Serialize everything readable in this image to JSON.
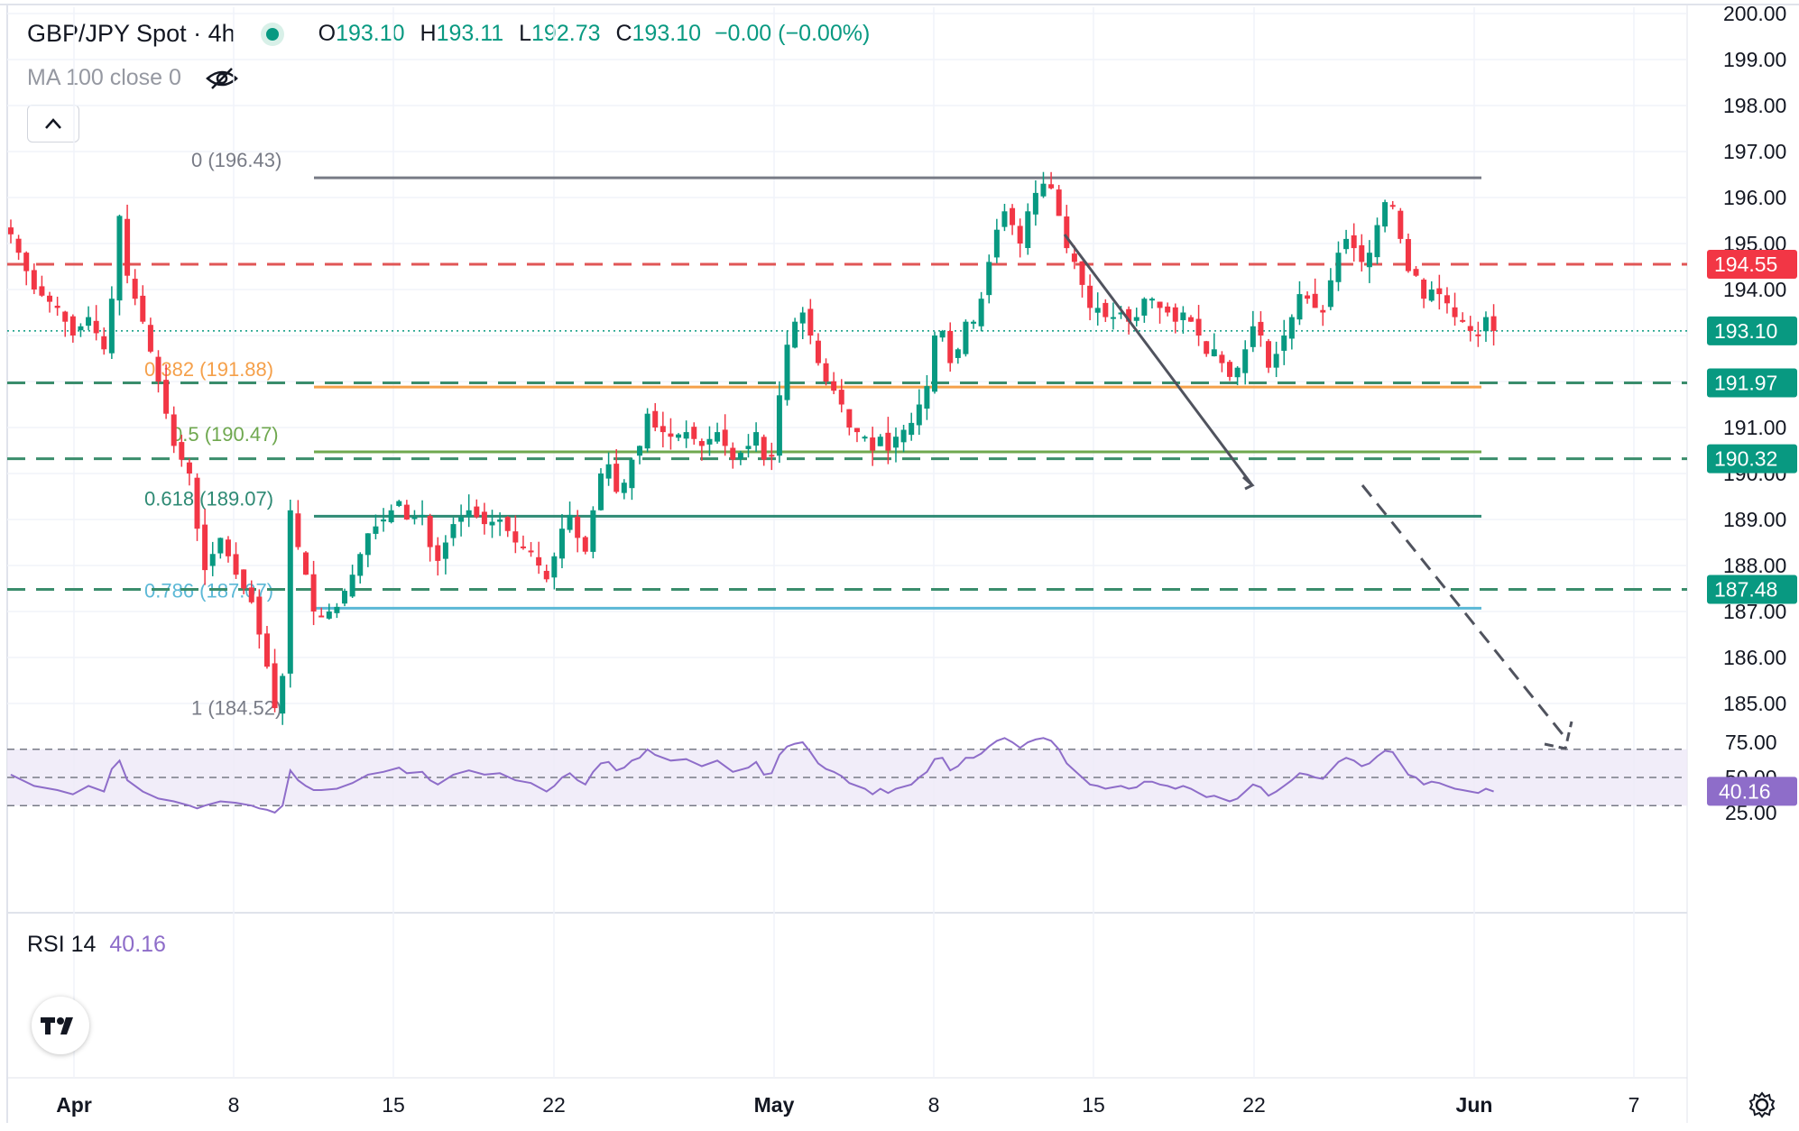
{
  "header": {
    "symbol": "GBP/JPY Spot · 4h",
    "o_label": "O",
    "o_value": "193.10",
    "h_label": "H",
    "h_value": "193.11",
    "l_label": "L",
    "l_value": "192.73",
    "c_label": "C",
    "c_value": "193.10",
    "change": "−0.00 (−0.00%)",
    "indicator": "MA 100 close 0"
  },
  "rsi_legend": {
    "name": "RSI 14",
    "value": "40.16"
  },
  "colors": {
    "up": "#089981",
    "down": "#f23645",
    "resistance": "#e05656",
    "support": "#3a8d6c",
    "fib_382": "#f5a04a",
    "fib_05": "#6fa84f",
    "fib_618": "#2e8a74",
    "fib_786": "#5bb8d6",
    "fib_0": "#787b86",
    "rsi": "#8e6dc9"
  },
  "chart_data": [
    {
      "type": "candlestick",
      "title": "GBP/JPY Spot · 4h",
      "y_ticks": [
        "200.00",
        "199.00",
        "198.00",
        "197.00",
        "196.00",
        "195.00",
        "194.00",
        "191.00",
        "190.00",
        "189.00",
        "188.00",
        "187.00",
        "186.00",
        "185.00"
      ],
      "x_ticks": [
        "Apr",
        "8",
        "15",
        "22",
        "May",
        "8",
        "15",
        "22",
        "Jun",
        "7"
      ],
      "ylim": [
        184.7,
        200.2
      ],
      "price_tags": [
        {
          "label": "194.55",
          "value": 194.55,
          "kind": "resistance"
        },
        {
          "label": "193.10",
          "value": 193.1,
          "kind": "last"
        },
        {
          "label": "191.97",
          "value": 191.97,
          "kind": "support"
        },
        {
          "label": "190.32",
          "value": 190.32,
          "kind": "support"
        },
        {
          "label": "187.48",
          "value": 187.48,
          "kind": "support"
        }
      ],
      "fib_levels": [
        {
          "label": "0 (196.43)",
          "value": 196.43,
          "key": "fib_0"
        },
        {
          "label": "0.382 (191.88)",
          "value": 191.88,
          "key": "fib_382"
        },
        {
          "label": "0.5 (190.47)",
          "value": 190.47,
          "key": "fib_05"
        },
        {
          "label": "0.618 (189.07)",
          "value": 189.07,
          "key": "fib_618"
        },
        {
          "label": "0.786 (187.07)",
          "value": 187.07,
          "key": "fib_786"
        },
        {
          "label": "1 (184.52)",
          "value": 184.52,
          "key": "fib_1"
        }
      ],
      "close_path": [
        [
          0,
          195.2
        ],
        [
          3,
          194.0
        ],
        [
          6,
          193.6
        ],
        [
          8,
          193.0
        ],
        [
          10,
          193.4
        ],
        [
          12,
          192.7
        ],
        [
          13,
          193.8
        ],
        [
          14,
          195.6
        ],
        [
          15,
          194.3
        ],
        [
          17,
          193.3
        ],
        [
          19,
          192.0
        ],
        [
          21,
          190.6
        ],
        [
          23,
          190.0
        ],
        [
          24,
          188.8
        ],
        [
          25,
          187.9
        ],
        [
          27,
          188.6
        ],
        [
          29,
          187.8
        ],
        [
          31,
          187.2
        ],
        [
          32,
          186.5
        ],
        [
          33,
          185.8
        ],
        [
          34,
          184.9
        ],
        [
          35,
          185.6
        ],
        [
          36,
          189.2
        ],
        [
          37,
          188.4
        ],
        [
          38,
          187.8
        ],
        [
          39,
          187.0
        ],
        [
          40,
          186.9
        ],
        [
          42,
          187.1
        ],
        [
          44,
          187.8
        ],
        [
          46,
          188.7
        ],
        [
          48,
          189.0
        ],
        [
          50,
          189.4
        ],
        [
          51,
          189.0
        ],
        [
          53,
          189.1
        ],
        [
          54,
          188.4
        ],
        [
          55,
          188.1
        ],
        [
          57,
          188.9
        ],
        [
          59,
          189.2
        ],
        [
          61,
          188.9
        ],
        [
          63,
          189.0
        ],
        [
          65,
          188.5
        ],
        [
          67,
          188.3
        ],
        [
          69,
          187.7
        ],
        [
          70,
          188.2
        ],
        [
          71,
          188.8
        ],
        [
          72,
          189.1
        ],
        [
          73,
          188.6
        ],
        [
          74,
          188.3
        ],
        [
          75,
          189.2
        ],
        [
          76,
          190.0
        ],
        [
          77,
          190.2
        ],
        [
          78,
          189.6
        ],
        [
          79,
          189.8
        ],
        [
          80,
          190.3
        ],
        [
          81,
          190.6
        ],
        [
          82,
          191.3
        ],
        [
          83,
          191.0
        ],
        [
          85,
          190.8
        ],
        [
          87,
          190.9
        ],
        [
          89,
          190.6
        ],
        [
          91,
          190.9
        ],
        [
          93,
          190.3
        ],
        [
          95,
          190.6
        ],
        [
          96,
          190.9
        ],
        [
          97,
          190.3
        ],
        [
          98,
          190.4
        ],
        [
          99,
          191.7
        ],
        [
          100,
          192.8
        ],
        [
          101,
          193.3
        ],
        [
          102,
          193.5
        ],
        [
          103,
          193.0
        ],
        [
          104,
          192.4
        ],
        [
          105,
          192.0
        ],
        [
          106,
          191.8
        ],
        [
          107,
          191.5
        ],
        [
          108,
          191.0
        ],
        [
          110,
          190.8
        ],
        [
          111,
          190.5
        ],
        [
          112,
          190.8
        ],
        [
          113,
          190.5
        ],
        [
          114,
          190.8
        ],
        [
          116,
          191.1
        ],
        [
          117,
          191.5
        ],
        [
          118,
          191.9
        ],
        [
          119,
          193.0
        ],
        [
          120,
          193.1
        ],
        [
          121,
          192.4
        ],
        [
          122,
          192.7
        ],
        [
          123,
          193.3
        ],
        [
          124,
          193.3
        ],
        [
          125,
          193.8
        ],
        [
          126,
          194.6
        ],
        [
          127,
          195.3
        ],
        [
          128,
          195.7
        ],
        [
          129,
          195.4
        ],
        [
          130,
          195.0
        ],
        [
          131,
          195.7
        ],
        [
          132,
          196.1
        ],
        [
          133,
          196.3
        ],
        [
          134,
          196.2
        ],
        [
          135,
          195.6
        ],
        [
          136,
          194.9
        ],
        [
          137,
          194.6
        ],
        [
          138,
          194.1
        ],
        [
          139,
          193.6
        ],
        [
          140,
          193.6
        ],
        [
          141,
          193.4
        ],
        [
          142,
          193.4
        ],
        [
          143,
          193.5
        ],
        [
          144,
          193.3
        ],
        [
          145,
          193.4
        ],
        [
          146,
          193.8
        ],
        [
          147,
          193.8
        ],
        [
          148,
          193.6
        ],
        [
          149,
          193.5
        ],
        [
          150,
          193.3
        ],
        [
          151,
          193.5
        ],
        [
          152,
          193.3
        ],
        [
          153,
          193.0
        ],
        [
          154,
          192.6
        ],
        [
          155,
          192.7
        ],
        [
          156,
          192.4
        ],
        [
          157,
          192.1
        ],
        [
          158,
          192.3
        ],
        [
          159,
          192.7
        ],
        [
          160,
          193.2
        ],
        [
          161,
          193.0
        ],
        [
          162,
          192.3
        ],
        [
          163,
          192.6
        ],
        [
          164,
          193.0
        ],
        [
          165,
          193.4
        ],
        [
          166,
          193.9
        ],
        [
          167,
          193.8
        ],
        [
          168,
          193.6
        ],
        [
          169,
          193.5
        ],
        [
          170,
          194.2
        ],
        [
          171,
          194.8
        ],
        [
          172,
          195.1
        ],
        [
          173,
          194.9
        ],
        [
          174,
          194.6
        ],
        [
          175,
          194.8
        ],
        [
          176,
          195.4
        ],
        [
          177,
          195.9
        ],
        [
          178,
          195.8
        ],
        [
          179,
          195.1
        ],
        [
          180,
          194.4
        ],
        [
          181,
          194.3
        ],
        [
          182,
          193.8
        ],
        [
          183,
          194.0
        ],
        [
          184,
          193.9
        ],
        [
          185,
          193.7
        ],
        [
          186,
          193.4
        ],
        [
          187,
          193.3
        ],
        [
          188,
          193.1
        ],
        [
          189,
          193.0
        ],
        [
          190,
          193.4
        ],
        [
          191,
          193.1
        ]
      ],
      "last_price": 193.1
    },
    {
      "type": "line",
      "title": "RSI 14",
      "y_ticks": [
        "75.00",
        "50.00",
        "25.00"
      ],
      "levels": [
        70,
        50,
        30
      ],
      "ylim": [
        20,
        80
      ],
      "last_value": 40.16,
      "value_path": [
        [
          0,
          52
        ],
        [
          3,
          44
        ],
        [
          6,
          41
        ],
        [
          8,
          38
        ],
        [
          10,
          44
        ],
        [
          12,
          40
        ],
        [
          13,
          56
        ],
        [
          14,
          62
        ],
        [
          15,
          48
        ],
        [
          17,
          40
        ],
        [
          19,
          35
        ],
        [
          21,
          33
        ],
        [
          23,
          30
        ],
        [
          24,
          28
        ],
        [
          25,
          30
        ],
        [
          27,
          33
        ],
        [
          29,
          32
        ],
        [
          31,
          30
        ],
        [
          32,
          28
        ],
        [
          33,
          27
        ],
        [
          34,
          25
        ],
        [
          35,
          30
        ],
        [
          36,
          55
        ],
        [
          37,
          48
        ],
        [
          38,
          44
        ],
        [
          39,
          41
        ],
        [
          40,
          41
        ],
        [
          42,
          42
        ],
        [
          44,
          46
        ],
        [
          46,
          52
        ],
        [
          48,
          54
        ],
        [
          50,
          57
        ],
        [
          51,
          53
        ],
        [
          53,
          54
        ],
        [
          54,
          48
        ],
        [
          55,
          45
        ],
        [
          57,
          52
        ],
        [
          59,
          55
        ],
        [
          61,
          52
        ],
        [
          63,
          53
        ],
        [
          65,
          48
        ],
        [
          67,
          46
        ],
        [
          69,
          40
        ],
        [
          70,
          44
        ],
        [
          71,
          50
        ],
        [
          72,
          53
        ],
        [
          73,
          48
        ],
        [
          74,
          45
        ],
        [
          75,
          54
        ],
        [
          76,
          60
        ],
        [
          77,
          61
        ],
        [
          78,
          55
        ],
        [
          79,
          57
        ],
        [
          80,
          62
        ],
        [
          81,
          64
        ],
        [
          82,
          70
        ],
        [
          83,
          66
        ],
        [
          85,
          62
        ],
        [
          87,
          63
        ],
        [
          89,
          58
        ],
        [
          91,
          62
        ],
        [
          93,
          54
        ],
        [
          95,
          57
        ],
        [
          96,
          61
        ],
        [
          97,
          52
        ],
        [
          98,
          53
        ],
        [
          99,
          66
        ],
        [
          100,
          72
        ],
        [
          101,
          74
        ],
        [
          102,
          75
        ],
        [
          103,
          68
        ],
        [
          104,
          60
        ],
        [
          105,
          56
        ],
        [
          106,
          54
        ],
        [
          107,
          51
        ],
        [
          108,
          46
        ],
        [
          110,
          42
        ],
        [
          111,
          38
        ],
        [
          112,
          42
        ],
        [
          113,
          39
        ],
        [
          114,
          42
        ],
        [
          116,
          45
        ],
        [
          117,
          50
        ],
        [
          118,
          54
        ],
        [
          119,
          63
        ],
        [
          120,
          64
        ],
        [
          121,
          55
        ],
        [
          122,
          58
        ],
        [
          123,
          64
        ],
        [
          124,
          64
        ],
        [
          125,
          67
        ],
        [
          126,
          72
        ],
        [
          127,
          76
        ],
        [
          128,
          78
        ],
        [
          129,
          75
        ],
        [
          130,
          71
        ],
        [
          131,
          75
        ],
        [
          132,
          77
        ],
        [
          133,
          78
        ],
        [
          134,
          76
        ],
        [
          135,
          70
        ],
        [
          136,
          60
        ],
        [
          137,
          55
        ],
        [
          138,
          50
        ],
        [
          139,
          45
        ],
        [
          140,
          44
        ],
        [
          141,
          42
        ],
        [
          142,
          43
        ],
        [
          143,
          44
        ],
        [
          144,
          42
        ],
        [
          145,
          43
        ],
        [
          146,
          47
        ],
        [
          147,
          47
        ],
        [
          148,
          45
        ],
        [
          149,
          44
        ],
        [
          150,
          42
        ],
        [
          151,
          44
        ],
        [
          152,
          42
        ],
        [
          153,
          39
        ],
        [
          154,
          36
        ],
        [
          155,
          37
        ],
        [
          156,
          35
        ],
        [
          157,
          33
        ],
        [
          158,
          35
        ],
        [
          159,
          40
        ],
        [
          160,
          45
        ],
        [
          161,
          43
        ],
        [
          162,
          37
        ],
        [
          163,
          40
        ],
        [
          164,
          44
        ],
        [
          165,
          48
        ],
        [
          166,
          53
        ],
        [
          167,
          52
        ],
        [
          168,
          50
        ],
        [
          169,
          49
        ],
        [
          170,
          55
        ],
        [
          171,
          61
        ],
        [
          172,
          64
        ],
        [
          173,
          62
        ],
        [
          174,
          58
        ],
        [
          175,
          60
        ],
        [
          176,
          65
        ],
        [
          177,
          69
        ],
        [
          178,
          68
        ],
        [
          179,
          60
        ],
        [
          180,
          52
        ],
        [
          181,
          50
        ],
        [
          182,
          45
        ],
        [
          183,
          47
        ],
        [
          184,
          46
        ],
        [
          185,
          44
        ],
        [
          186,
          42
        ],
        [
          187,
          41
        ],
        [
          188,
          40
        ],
        [
          189,
          39
        ],
        [
          190,
          42
        ],
        [
          191,
          40
        ]
      ]
    }
  ]
}
